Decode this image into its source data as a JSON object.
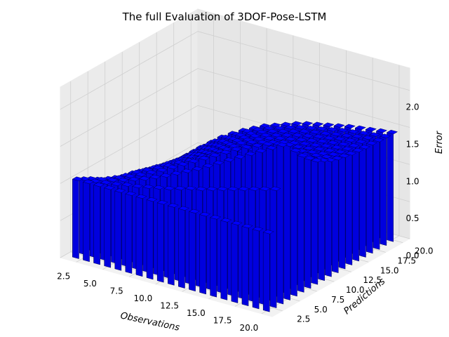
{
  "chart_data": {
    "type": "bar3d",
    "title": "The full Evaluation of 3DOF-Pose-LSTM",
    "xlabel": "Observations",
    "ylabel": "Predictions",
    "zlabel": "Error",
    "x_range": [
      1,
      21
    ],
    "y_range": [
      1,
      21
    ],
    "z_range": [
      0,
      2.3
    ],
    "x_ticks": [
      "2.5",
      "5.0",
      "7.5",
      "10.0",
      "12.5",
      "15.0",
      "17.5",
      "20.0"
    ],
    "y_ticks": [
      "2.5",
      "5.0",
      "7.5",
      "10.0",
      "12.5",
      "15.0",
      "17.5",
      "20.0"
    ],
    "z_ticks": [
      "0.0",
      "0.5",
      "1.0",
      "1.5",
      "2.0"
    ],
    "observations": [
      2,
      3,
      4,
      5,
      6,
      7,
      8,
      9,
      10,
      11,
      12,
      13,
      14,
      15,
      16,
      17,
      18,
      19,
      20
    ],
    "predictions": [
      2,
      3,
      4,
      5,
      6,
      7,
      8,
      9,
      10,
      11,
      12,
      13,
      14,
      15,
      16,
      17,
      18,
      19,
      20
    ],
    "bar_color": "#0000ff",
    "edge_color": "#00003c",
    "values": [
      [
        1.05,
        1.05,
        1.05,
        1.05,
        1.05,
        1.05,
        1.05,
        1.05,
        1.05,
        1.05,
        1.05,
        1.05,
        1.05,
        1.05,
        1.05,
        1.05,
        1.05,
        1.05,
        1.05
      ],
      [
        1.0,
        1.01,
        1.03,
        1.05,
        1.08,
        1.1,
        1.13,
        1.16,
        1.19,
        1.23,
        1.27,
        1.3,
        1.34,
        1.38,
        1.42,
        1.46,
        1.5,
        1.54,
        1.58
      ],
      [
        0.95,
        0.98,
        1.01,
        1.05,
        1.1,
        1.15,
        1.21,
        1.27,
        1.34,
        1.41,
        1.48,
        1.56,
        1.64,
        1.72,
        1.8,
        1.88,
        1.96,
        2.04,
        2.12
      ],
      [
        0.89,
        0.94,
        0.99,
        1.05,
        1.11,
        1.18,
        1.25,
        1.33,
        1.41,
        1.49,
        1.57,
        1.65,
        1.73,
        1.81,
        1.88,
        1.94,
        2.0,
        2.04,
        2.07
      ],
      [
        0.83,
        0.9,
        0.97,
        1.05,
        1.12,
        1.19,
        1.26,
        1.34,
        1.41,
        1.48,
        1.55,
        1.61,
        1.67,
        1.73,
        1.79,
        1.83,
        1.87,
        1.91,
        1.94
      ],
      [
        0.78,
        0.86,
        0.95,
        1.02,
        1.1,
        1.17,
        1.24,
        1.31,
        1.37,
        1.43,
        1.49,
        1.54,
        1.59,
        1.64,
        1.68,
        1.72,
        1.76,
        1.79,
        1.82
      ],
      [
        0.74,
        0.82,
        0.92,
        0.99,
        1.07,
        1.14,
        1.21,
        1.27,
        1.33,
        1.38,
        1.44,
        1.48,
        1.53,
        1.57,
        1.61,
        1.64,
        1.67,
        1.7,
        1.73
      ],
      [
        0.7,
        0.79,
        0.89,
        0.97,
        1.05,
        1.12,
        1.18,
        1.24,
        1.29,
        1.34,
        1.39,
        1.43,
        1.47,
        1.51,
        1.54,
        1.57,
        1.6,
        1.63,
        1.65
      ],
      [
        0.66,
        0.76,
        0.86,
        0.94,
        1.02,
        1.09,
        1.15,
        1.21,
        1.26,
        1.31,
        1.35,
        1.39,
        1.43,
        1.46,
        1.49,
        1.52,
        1.55,
        1.58,
        1.6
      ],
      [
        0.63,
        0.73,
        0.83,
        0.92,
        1.0,
        1.07,
        1.13,
        1.19,
        1.24,
        1.28,
        1.32,
        1.36,
        1.39,
        1.42,
        1.45,
        1.48,
        1.51,
        1.53,
        1.55
      ],
      [
        0.6,
        0.71,
        0.81,
        0.9,
        0.98,
        1.05,
        1.11,
        1.17,
        1.21,
        1.26,
        1.3,
        1.33,
        1.37,
        1.4,
        1.43,
        1.45,
        1.48,
        1.5,
        1.52
      ],
      [
        0.58,
        0.69,
        0.79,
        0.88,
        0.96,
        1.03,
        1.09,
        1.15,
        1.2,
        1.24,
        1.28,
        1.32,
        1.35,
        1.38,
        1.41,
        1.43,
        1.45,
        1.48,
        1.5
      ],
      [
        0.56,
        0.67,
        0.77,
        0.87,
        0.95,
        1.02,
        1.08,
        1.14,
        1.18,
        1.23,
        1.27,
        1.3,
        1.34,
        1.37,
        1.39,
        1.42,
        1.44,
        1.46,
        1.48
      ],
      [
        0.55,
        0.66,
        0.76,
        0.85,
        0.94,
        1.01,
        1.07,
        1.13,
        1.18,
        1.22,
        1.26,
        1.3,
        1.33,
        1.36,
        1.38,
        1.41,
        1.43,
        1.45,
        1.47
      ],
      [
        0.54,
        0.65,
        0.75,
        0.85,
        0.93,
        1.0,
        1.07,
        1.12,
        1.17,
        1.22,
        1.26,
        1.29,
        1.32,
        1.35,
        1.38,
        1.4,
        1.42,
        1.44,
        1.46
      ],
      [
        0.53,
        0.64,
        0.75,
        0.84,
        0.93,
        1.0,
        1.06,
        1.12,
        1.17,
        1.21,
        1.25,
        1.29,
        1.32,
        1.35,
        1.37,
        1.4,
        1.42,
        1.44,
        1.46
      ],
      [
        0.53,
        0.64,
        0.75,
        0.84,
        0.92,
        1.0,
        1.06,
        1.12,
        1.17,
        1.21,
        1.25,
        1.29,
        1.32,
        1.34,
        1.37,
        1.39,
        1.42,
        1.44,
        1.45
      ],
      [
        0.53,
        0.64,
        0.75,
        0.84,
        0.92,
        1.0,
        1.06,
        1.12,
        1.16,
        1.21,
        1.25,
        1.28,
        1.31,
        1.34,
        1.37,
        1.39,
        1.41,
        1.43,
        1.45
      ],
      [
        0.53,
        0.64,
        0.75,
        0.84,
        0.92,
        0.99,
        1.06,
        1.11,
        1.16,
        1.21,
        1.25,
        1.28,
        1.31,
        1.34,
        1.37,
        1.39,
        1.41,
        1.43,
        1.45
      ]
    ]
  }
}
